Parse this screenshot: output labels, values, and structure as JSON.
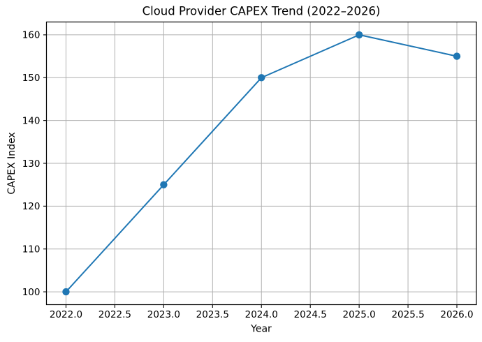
{
  "chart_data": {
    "type": "line",
    "title": "Cloud Provider CAPEX Trend (2022–2026)",
    "xlabel": "Year",
    "ylabel": "CAPEX Index",
    "x": [
      2022,
      2023,
      2024,
      2025,
      2026
    ],
    "series": [
      {
        "name": "CAPEX Index",
        "values": [
          100,
          125,
          150,
          160,
          155
        ],
        "color": "#1f77b4",
        "marker": "circle"
      }
    ],
    "xlim": [
      2021.8,
      2026.2
    ],
    "ylim": [
      97,
      163
    ],
    "xticks": {
      "values": [
        2022,
        2022.5,
        2023,
        2023.5,
        2024,
        2024.5,
        2025,
        2025.5,
        2026
      ],
      "labels": [
        "2022.0",
        "2022.5",
        "2023.0",
        "2023.5",
        "2024.0",
        "2024.5",
        "2025.0",
        "2025.5",
        "2026.0"
      ]
    },
    "yticks": {
      "values": [
        100,
        110,
        120,
        130,
        140,
        150,
        160
      ],
      "labels": [
        "100",
        "110",
        "120",
        "130",
        "140",
        "150",
        "160"
      ]
    },
    "grid": true,
    "legend": false,
    "colors": {
      "line": "#1f77b4",
      "grid": "#b0b0b0",
      "spine": "#000000",
      "text": "#000000",
      "background": "#ffffff"
    }
  }
}
